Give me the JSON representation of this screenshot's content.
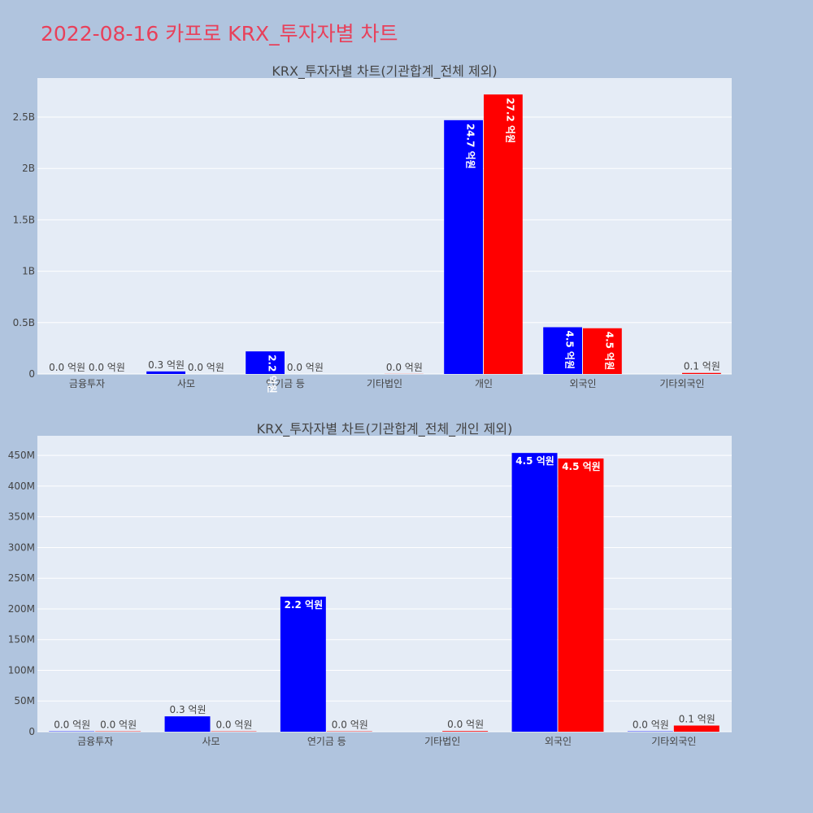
{
  "title": "2022-08-16 카프로 KRX_투자자별 차트",
  "colors": {
    "background": "#b0c4de",
    "plot_bg": "#e5ecf6",
    "grid": "#ffffff",
    "title": "#e8405a",
    "series_a": "#0000ff",
    "series_b": "#ff0000"
  },
  "chart_data": [
    {
      "type": "bar",
      "title": "KRX_투자자별 차트(기관합계_전체 제외)",
      "categories": [
        "금융투자",
        "사모",
        "연기금 등",
        "기타법인",
        "개인",
        "외국인",
        "기타외국인"
      ],
      "ylim": [
        0,
        2.88
      ],
      "yticks": [
        0,
        0.5,
        1,
        1.5,
        2,
        2.5
      ],
      "ytick_labels": [
        "0",
        "0.5B",
        "1B",
        "1.5B",
        "2B",
        "2.5B"
      ],
      "series": [
        {
          "color": "#0000ff",
          "values": [
            0.0,
            0.025,
            0.22,
            0.0,
            2.47,
            0.455,
            0.0
          ],
          "labels": [
            "0.0 억원",
            "0.3 억원",
            "2.2 억원",
            "",
            "24.7 억원",
            "4.5 억원",
            ""
          ]
        },
        {
          "color": "#ff0000",
          "values": [
            0.0,
            0.0,
            0.0,
            0.001,
            2.72,
            0.445,
            0.01
          ],
          "labels": [
            "0.0 억원",
            "0.0 억원",
            "0.0 억원",
            "0.0 억원",
            "27.2 억원",
            "4.5 억원",
            "0.1 억원"
          ]
        }
      ],
      "grid": true
    },
    {
      "type": "bar",
      "title": "KRX_투자자별 차트(기관합계_전체_개인 제외)",
      "categories": [
        "금융투자",
        "사모",
        "연기금 등",
        "기타법인",
        "외국인",
        "기타외국인"
      ],
      "ylim": [
        0,
        482
      ],
      "yticks": [
        0,
        50,
        100,
        150,
        200,
        250,
        300,
        350,
        400,
        450
      ],
      "ytick_labels": [
        "0",
        "50M",
        "100M",
        "150M",
        "200M",
        "250M",
        "300M",
        "350M",
        "400M",
        "450M"
      ],
      "series": [
        {
          "color": "#0000ff",
          "values": [
            0.5,
            25,
            220,
            0,
            454,
            0.5
          ],
          "labels": [
            "0.0 억원",
            "0.3 억원",
            "2.2 억원",
            "",
            "4.5 억원",
            "0.0 억원"
          ]
        },
        {
          "color": "#ff0000",
          "values": [
            0.5,
            0.5,
            0.5,
            1,
            445,
            10
          ],
          "labels": [
            "0.0 억원",
            "0.0 억원",
            "0.0 억원",
            "0.0 억원",
            "4.5 억원",
            "0.1 억원"
          ]
        }
      ],
      "grid": true
    }
  ]
}
